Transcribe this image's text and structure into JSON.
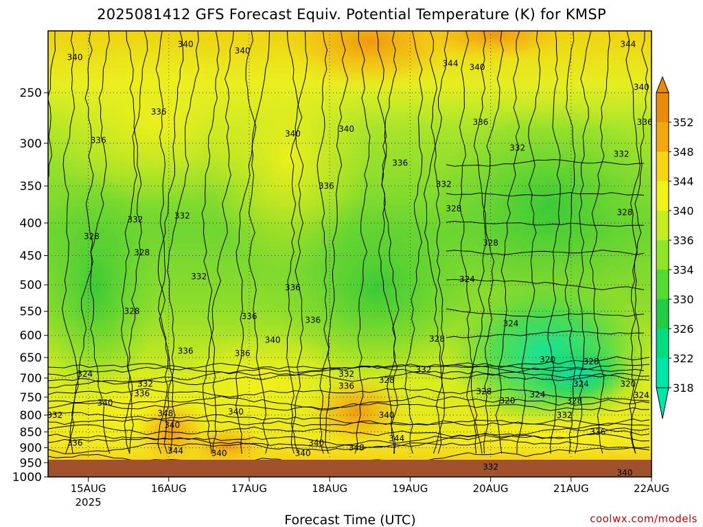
{
  "chart_data": {
    "type": "heatmap",
    "title": "2025081412 GFS Forecast Equiv. Potential Temperature (K) for KMSP",
    "xlabel": "Forecast Time (UTC)",
    "ylabel": "",
    "y_scale": "log",
    "ylim": [
      1000,
      200
    ],
    "y_ticks": [
      250,
      300,
      350,
      400,
      450,
      500,
      550,
      600,
      650,
      700,
      750,
      800,
      850,
      900,
      950,
      1000
    ],
    "x_range": [
      "2025-08-14T12",
      "2025-08-22T00"
    ],
    "x_ticks": [
      {
        "label": "15AUG",
        "sub": "2025",
        "t": "2025-08-15T00"
      },
      {
        "label": "16AUG",
        "t": "2025-08-16T00"
      },
      {
        "label": "17AUG",
        "t": "2025-08-17T00"
      },
      {
        "label": "18AUG",
        "t": "2025-08-18T00"
      },
      {
        "label": "19AUG",
        "t": "2025-08-19T00"
      },
      {
        "label": "20AUG",
        "t": "2025-08-20T00"
      },
      {
        "label": "21AUG",
        "t": "2025-08-21T00"
      },
      {
        "label": "22AUG",
        "t": "2025-08-22T00"
      }
    ],
    "colorbar": {
      "labels": [
        318,
        322,
        326,
        330,
        334,
        336,
        340,
        344,
        348,
        352
      ],
      "colors": [
        "#00e6a8",
        "#00dc82",
        "#22cc44",
        "#55d933",
        "#8ee628",
        "#c5ee22",
        "#f2f21b",
        "#f5d612",
        "#f2a90e",
        "#e88a0a"
      ]
    },
    "contour_labels": [
      {
        "text": "340",
        "t": "2025-08-14T20",
        "p": 220
      },
      {
        "text": "340",
        "t": "2025-08-16T05",
        "p": 210
      },
      {
        "text": "340",
        "t": "2025-08-16T22",
        "p": 215
      },
      {
        "text": "344",
        "t": "2025-08-21T17",
        "p": 210
      },
      {
        "text": "344",
        "t": "2025-08-19T12",
        "p": 225
      },
      {
        "text": "340",
        "t": "2025-08-19T20",
        "p": 228
      },
      {
        "text": "336",
        "t": "2025-08-15T21",
        "p": 268
      },
      {
        "text": "340",
        "t": "2025-08-21T21",
        "p": 245
      },
      {
        "text": "336",
        "t": "2025-08-19T21",
        "p": 278
      },
      {
        "text": "336",
        "t": "2025-08-21T22",
        "p": 278
      },
      {
        "text": "340",
        "t": "2025-08-17T13",
        "p": 290
      },
      {
        "text": "340",
        "t": "2025-08-18T05",
        "p": 285
      },
      {
        "text": "336",
        "t": "2025-08-15T03",
        "p": 297
      },
      {
        "text": "332",
        "t": "2025-08-20T08",
        "p": 305
      },
      {
        "text": "332",
        "t": "2025-08-21T15",
        "p": 312
      },
      {
        "text": "336",
        "t": "2025-08-18T21",
        "p": 322
      },
      {
        "text": "332",
        "t": "2025-08-19T10",
        "p": 348
      },
      {
        "text": "336",
        "t": "2025-08-17T23",
        "p": 350
      },
      {
        "text": "328",
        "t": "2025-08-19T13",
        "p": 380
      },
      {
        "text": "328",
        "t": "2025-08-21T16",
        "p": 385
      },
      {
        "text": "332",
        "t": "2025-08-15T14",
        "p": 395
      },
      {
        "text": "332",
        "t": "2025-08-16T04",
        "p": 390
      },
      {
        "text": "328",
        "t": "2025-08-15T01",
        "p": 420
      },
      {
        "text": "328",
        "t": "2025-08-15T16",
        "p": 445
      },
      {
        "text": "328",
        "t": "2025-08-20T00",
        "p": 430
      },
      {
        "text": "332",
        "t": "2025-08-16T09",
        "p": 485
      },
      {
        "text": "324",
        "t": "2025-08-19T17",
        "p": 490
      },
      {
        "text": "336",
        "t": "2025-08-17T13",
        "p": 505
      },
      {
        "text": "328",
        "t": "2025-08-15T13",
        "p": 550
      },
      {
        "text": "336",
        "t": "2025-08-17T00",
        "p": 560
      },
      {
        "text": "336",
        "t": "2025-08-17T19",
        "p": 568
      },
      {
        "text": "324",
        "t": "2025-08-20T06",
        "p": 575
      },
      {
        "text": "340",
        "t": "2025-08-17T07",
        "p": 610
      },
      {
        "text": "328",
        "t": "2025-08-19T08",
        "p": 608
      },
      {
        "text": "336",
        "t": "2025-08-16T05",
        "p": 635
      },
      {
        "text": "336",
        "t": "2025-08-16T22",
        "p": 640
      },
      {
        "text": "320",
        "t": "2025-08-20T17",
        "p": 655
      },
      {
        "text": "328",
        "t": "2025-08-21T06",
        "p": 660
      },
      {
        "text": "332",
        "t": "2025-08-19T04",
        "p": 680
      },
      {
        "text": "324",
        "t": "2025-08-14T23",
        "p": 690
      },
      {
        "text": "332",
        "t": "2025-08-18T05",
        "p": 690
      },
      {
        "text": "332",
        "t": "2025-08-15T17",
        "p": 715
      },
      {
        "text": "336",
        "t": "2025-08-18T05",
        "p": 720
      },
      {
        "text": "328",
        "t": "2025-08-18T17",
        "p": 705
      },
      {
        "text": "324",
        "t": "2025-08-21T03",
        "p": 715
      },
      {
        "text": "320",
        "t": "2025-08-21T17",
        "p": 715
      },
      {
        "text": "336",
        "t": "2025-08-15T16",
        "p": 740
      },
      {
        "text": "328",
        "t": "2025-08-19T22",
        "p": 735
      },
      {
        "text": "324",
        "t": "2025-08-20T14",
        "p": 743
      },
      {
        "text": "340",
        "t": "2025-08-15T05",
        "p": 765
      },
      {
        "text": "320",
        "t": "2025-08-20T05",
        "p": 760
      },
      {
        "text": "328",
        "t": "2025-08-21T01",
        "p": 760
      },
      {
        "text": "324",
        "t": "2025-08-21T21",
        "p": 745
      },
      {
        "text": "340",
        "t": "2025-08-16T20",
        "p": 790
      },
      {
        "text": "348",
        "t": "2025-08-15T23",
        "p": 795
      },
      {
        "text": "332",
        "t": "2025-08-14T14",
        "p": 800
      },
      {
        "text": "340",
        "t": "2025-08-18T17",
        "p": 800
      },
      {
        "text": "332",
        "t": "2025-08-20T22",
        "p": 800
      },
      {
        "text": "340",
        "t": "2025-08-16T01",
        "p": 830
      },
      {
        "text": "336",
        "t": "2025-08-21T08",
        "p": 850
      },
      {
        "text": "344",
        "t": "2025-08-18T20",
        "p": 870
      },
      {
        "text": "336",
        "t": "2025-08-14T20",
        "p": 885
      },
      {
        "text": "340",
        "t": "2025-08-17T20",
        "p": 885
      },
      {
        "text": "344",
        "t": "2025-08-16T02",
        "p": 910
      },
      {
        "text": "348",
        "t": "2025-08-18T08",
        "p": 900
      },
      {
        "text": "340",
        "t": "2025-08-16T15",
        "p": 918
      },
      {
        "text": "340",
        "t": "2025-08-17T16",
        "p": 918
      },
      {
        "text": "332",
        "t": "2025-08-20T00",
        "p": 965
      },
      {
        "text": "340",
        "t": "2025-08-21T16",
        "p": 985
      }
    ],
    "grid": true,
    "colorbar_position": "right"
  },
  "credit": "coolwx.com/models"
}
